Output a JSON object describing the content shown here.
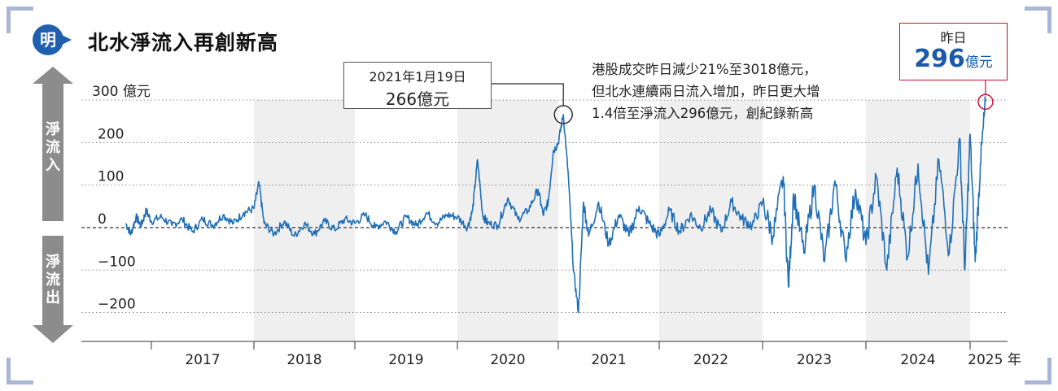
{
  "header": {
    "logo_text": "明",
    "title": "北水淨流入再創新高"
  },
  "annotations": {
    "peak_2021_date": "2021年1月19日",
    "peak_2021_value": "266億元",
    "note_lines": [
      "港股成交昨日減少21%至3018億元，",
      "但北水連續兩日流入增加，昨日更大增",
      "1.4倍至淨流入296億元，創紀錄新高"
    ],
    "latest_label": "昨日",
    "latest_value": "296",
    "latest_unit": "億元"
  },
  "arrows": {
    "inflow_label": "淨流入",
    "outflow_label": "淨流出"
  },
  "colors": {
    "line": "#1f6fb8",
    "band": "#efeff0",
    "arrow": "#8c8c8c",
    "highlight_box": "#c8102e",
    "corner": "#a9b6d6"
  },
  "chart_data": {
    "type": "line",
    "title": "北水淨流入再創新高",
    "xlabel": "年",
    "ylabel": "億元",
    "ylim": [
      -200,
      300
    ],
    "yticks": [
      300,
      200,
      100,
      0,
      -100,
      -200
    ],
    "ytick_labels": [
      "300 億元",
      "200",
      "100",
      "0",
      "−100",
      "−200"
    ],
    "x_labels": [
      "2017",
      "2018",
      "2019",
      "2020",
      "2021",
      "2022",
      "2023",
      "2024",
      "2025 年"
    ],
    "x_domain": [
      2016.75,
      2025.15
    ],
    "grid": "dotted horizontal",
    "series": [
      {
        "name": "",
        "points": [
          [
            2016.75,
            10
          ],
          [
            2016.8,
            -15
          ],
          [
            2016.85,
            25
          ],
          [
            2016.9,
            5
          ],
          [
            2016.95,
            40
          ],
          [
            2017.0,
            15
          ],
          [
            2017.1,
            25
          ],
          [
            2017.2,
            5
          ],
          [
            2017.3,
            20
          ],
          [
            2017.4,
            -10
          ],
          [
            2017.5,
            20
          ],
          [
            2017.6,
            5
          ],
          [
            2017.7,
            30
          ],
          [
            2017.8,
            10
          ],
          [
            2017.9,
            35
          ],
          [
            2018.0,
            45
          ],
          [
            2018.05,
            105
          ],
          [
            2018.1,
            10
          ],
          [
            2018.2,
            -15
          ],
          [
            2018.3,
            15
          ],
          [
            2018.4,
            -20
          ],
          [
            2018.5,
            10
          ],
          [
            2018.6,
            -15
          ],
          [
            2018.7,
            15
          ],
          [
            2018.8,
            -5
          ],
          [
            2018.9,
            20
          ],
          [
            2019.0,
            10
          ],
          [
            2019.1,
            30
          ],
          [
            2019.2,
            0
          ],
          [
            2019.3,
            15
          ],
          [
            2019.4,
            -10
          ],
          [
            2019.5,
            25
          ],
          [
            2019.6,
            5
          ],
          [
            2019.7,
            35
          ],
          [
            2019.8,
            10
          ],
          [
            2019.9,
            30
          ],
          [
            2020.0,
            25
          ],
          [
            2020.1,
            0
          ],
          [
            2020.15,
            40
          ],
          [
            2020.2,
            160
          ],
          [
            2020.25,
            30
          ],
          [
            2020.3,
            10
          ],
          [
            2020.4,
            5
          ],
          [
            2020.5,
            70
          ],
          [
            2020.6,
            20
          ],
          [
            2020.7,
            40
          ],
          [
            2020.8,
            90
          ],
          [
            2020.85,
            30
          ],
          [
            2020.9,
            60
          ],
          [
            2020.95,
            180
          ],
          [
            2021.0,
            200
          ],
          [
            2021.05,
            266
          ],
          [
            2021.1,
            120
          ],
          [
            2021.15,
            -100
          ],
          [
            2021.2,
            -200
          ],
          [
            2021.25,
            60
          ],
          [
            2021.3,
            -20
          ],
          [
            2021.4,
            60
          ],
          [
            2021.5,
            -40
          ],
          [
            2021.6,
            30
          ],
          [
            2021.7,
            -20
          ],
          [
            2021.8,
            50
          ],
          [
            2021.9,
            10
          ],
          [
            2022.0,
            -20
          ],
          [
            2022.1,
            40
          ],
          [
            2022.2,
            -10
          ],
          [
            2022.3,
            30
          ],
          [
            2022.4,
            0
          ],
          [
            2022.5,
            40
          ],
          [
            2022.6,
            -10
          ],
          [
            2022.7,
            60
          ],
          [
            2022.8,
            20
          ],
          [
            2022.9,
            5
          ],
          [
            2023.0,
            60
          ],
          [
            2023.1,
            -20
          ],
          [
            2023.2,
            120
          ],
          [
            2023.25,
            -140
          ],
          [
            2023.3,
            80
          ],
          [
            2023.4,
            -60
          ],
          [
            2023.5,
            100
          ],
          [
            2023.6,
            -80
          ],
          [
            2023.7,
            110
          ],
          [
            2023.8,
            -70
          ],
          [
            2023.9,
            90
          ],
          [
            2024.0,
            -40
          ],
          [
            2024.1,
            120
          ],
          [
            2024.2,
            -100
          ],
          [
            2024.3,
            140
          ],
          [
            2024.4,
            -70
          ],
          [
            2024.5,
            150
          ],
          [
            2024.6,
            -110
          ],
          [
            2024.7,
            160
          ],
          [
            2024.8,
            -60
          ],
          [
            2024.9,
            210
          ],
          [
            2024.95,
            -100
          ],
          [
            2025.0,
            220
          ],
          [
            2025.05,
            -80
          ],
          [
            2025.1,
            150
          ],
          [
            2025.15,
            296
          ]
        ]
      }
    ],
    "highlights": [
      {
        "x": 2021.05,
        "y": 266
      },
      {
        "x": 2025.15,
        "y": 296
      }
    ]
  }
}
